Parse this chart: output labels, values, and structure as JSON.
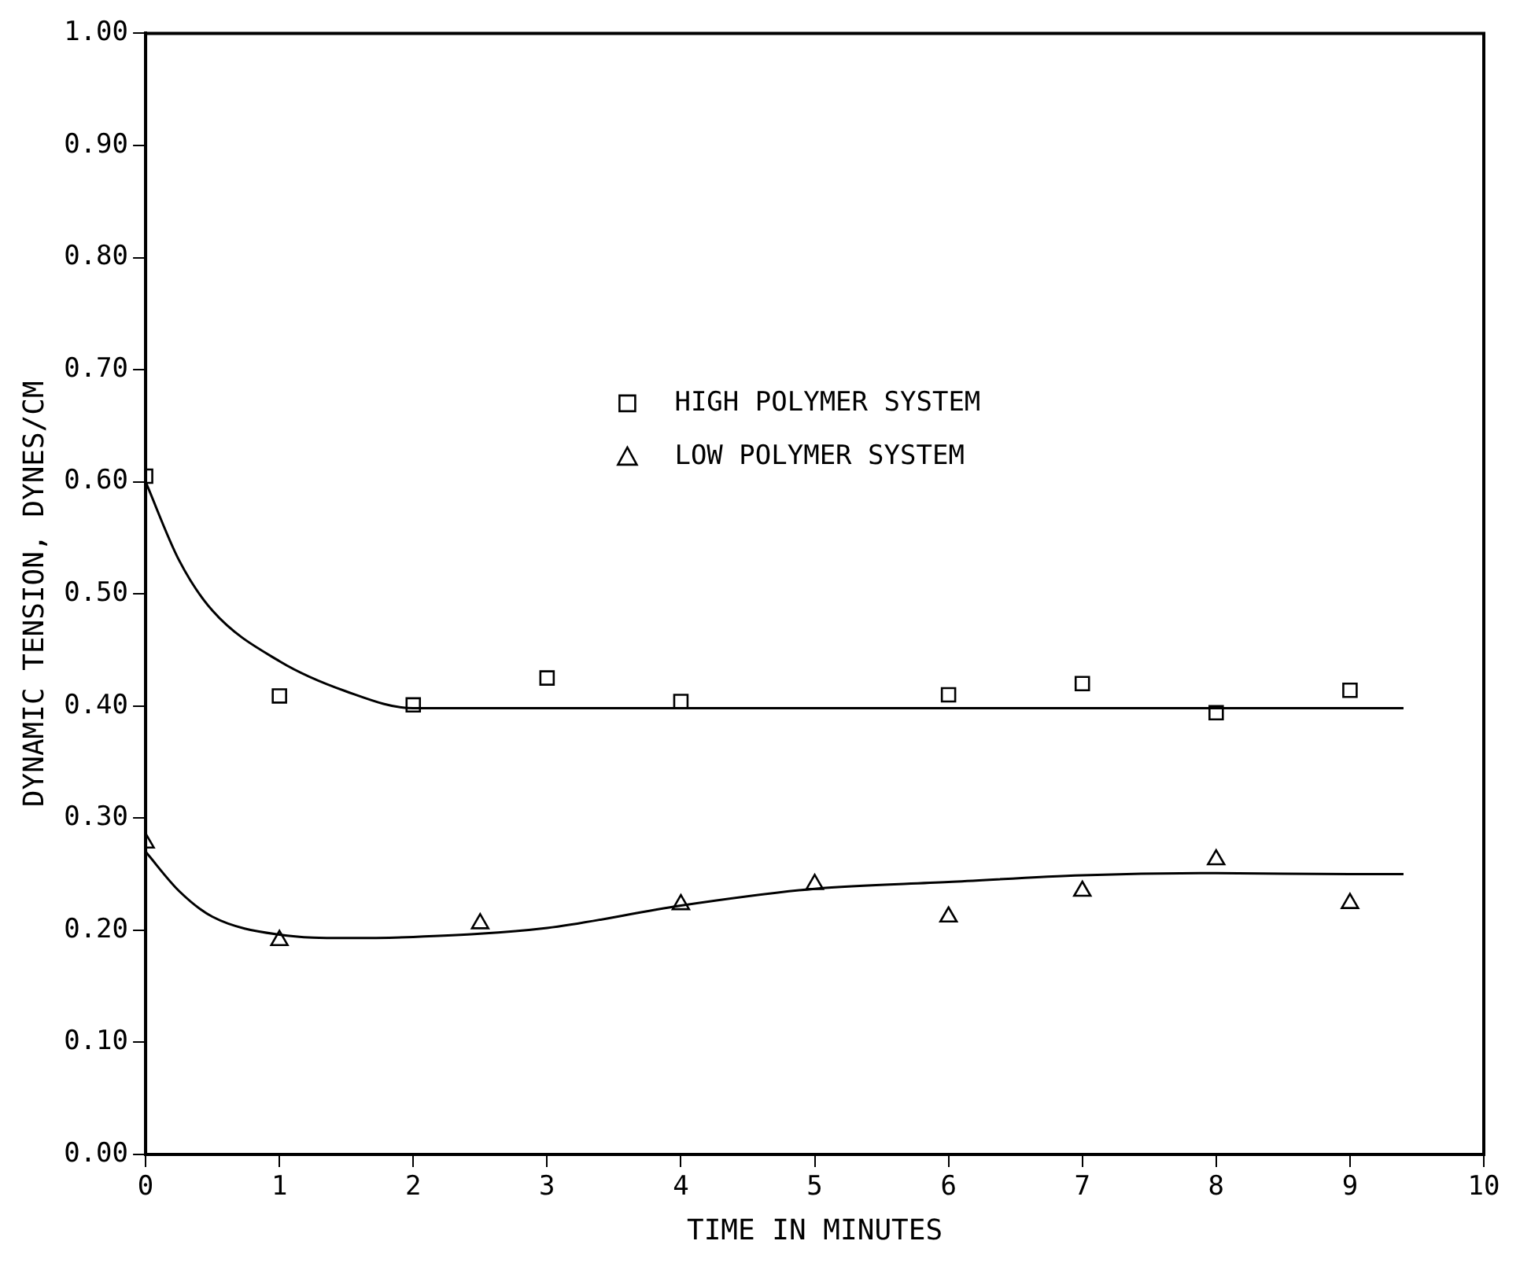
{
  "chart_data": {
    "type": "scatter",
    "xlabel": "TIME IN MINUTES",
    "ylabel": "DYNAMIC TENSION, DYNES/CM",
    "xlim": [
      0,
      10
    ],
    "xticks": [
      0,
      1,
      2,
      3,
      4,
      5,
      6,
      7,
      8,
      9,
      10
    ],
    "ylim": [
      0,
      1
    ],
    "yticks": [
      {
        "value": 0,
        "label": "0.00"
      },
      {
        "value": 0.1,
        "label": "0.10"
      },
      {
        "value": 0.2,
        "label": "0.20"
      },
      {
        "value": 0.3,
        "label": "0.30"
      },
      {
        "value": 0.4,
        "label": "0.40"
      },
      {
        "value": 0.5,
        "label": "0.50"
      },
      {
        "value": 0.6,
        "label": "0.60"
      },
      {
        "value": 0.7,
        "label": "0.70"
      },
      {
        "value": 0.8,
        "label": "0.80"
      },
      {
        "value": 0.9,
        "label": "0.90"
      },
      {
        "value": 1,
        "label": "1.00"
      }
    ],
    "grid": false,
    "legend": "top right",
    "series": [
      {
        "name": "HIGH POLYMER SYSTEM",
        "marker": "square",
        "color": "#000000",
        "x": [
          0,
          1,
          2,
          3,
          4,
          6,
          7,
          8,
          9
        ],
        "values": [
          0.605,
          0.409,
          0.401,
          0.425,
          0.404,
          0.41,
          0.42,
          0.394,
          0.414
        ]
      },
      {
        "name": "LOW POLYMER SYSTEM",
        "marker": "triangle",
        "color": "#000000",
        "x": [
          0,
          1,
          2.5,
          4,
          5,
          6,
          7,
          8,
          9
        ],
        "values": [
          0.278,
          0.191,
          0.206,
          0.223,
          0.241,
          0.212,
          0.235,
          0.263,
          0.224
        ]
      },
      {
        "type": "line",
        "marker": "none",
        "color": "#000000",
        "x": [
          0,
          0.25,
          0.5,
          1,
          1.5,
          2,
          3,
          5,
          7,
          9.4
        ],
        "values": [
          0.6,
          0.53,
          0.485,
          0.44,
          0.413,
          0.398,
          0.398,
          0.398,
          0.398,
          0.398
        ]
      },
      {
        "type": "line",
        "marker": "none",
        "color": "#000000",
        "x": [
          0,
          0.25,
          0.5,
          1,
          1.5,
          2,
          3,
          4,
          5,
          6,
          7,
          8,
          9,
          9.4
        ],
        "values": [
          0.27,
          0.235,
          0.212,
          0.196,
          0.193,
          0.194,
          0.202,
          0.222,
          0.237,
          0.243,
          0.249,
          0.251,
          0.25,
          0.25
        ]
      }
    ]
  }
}
